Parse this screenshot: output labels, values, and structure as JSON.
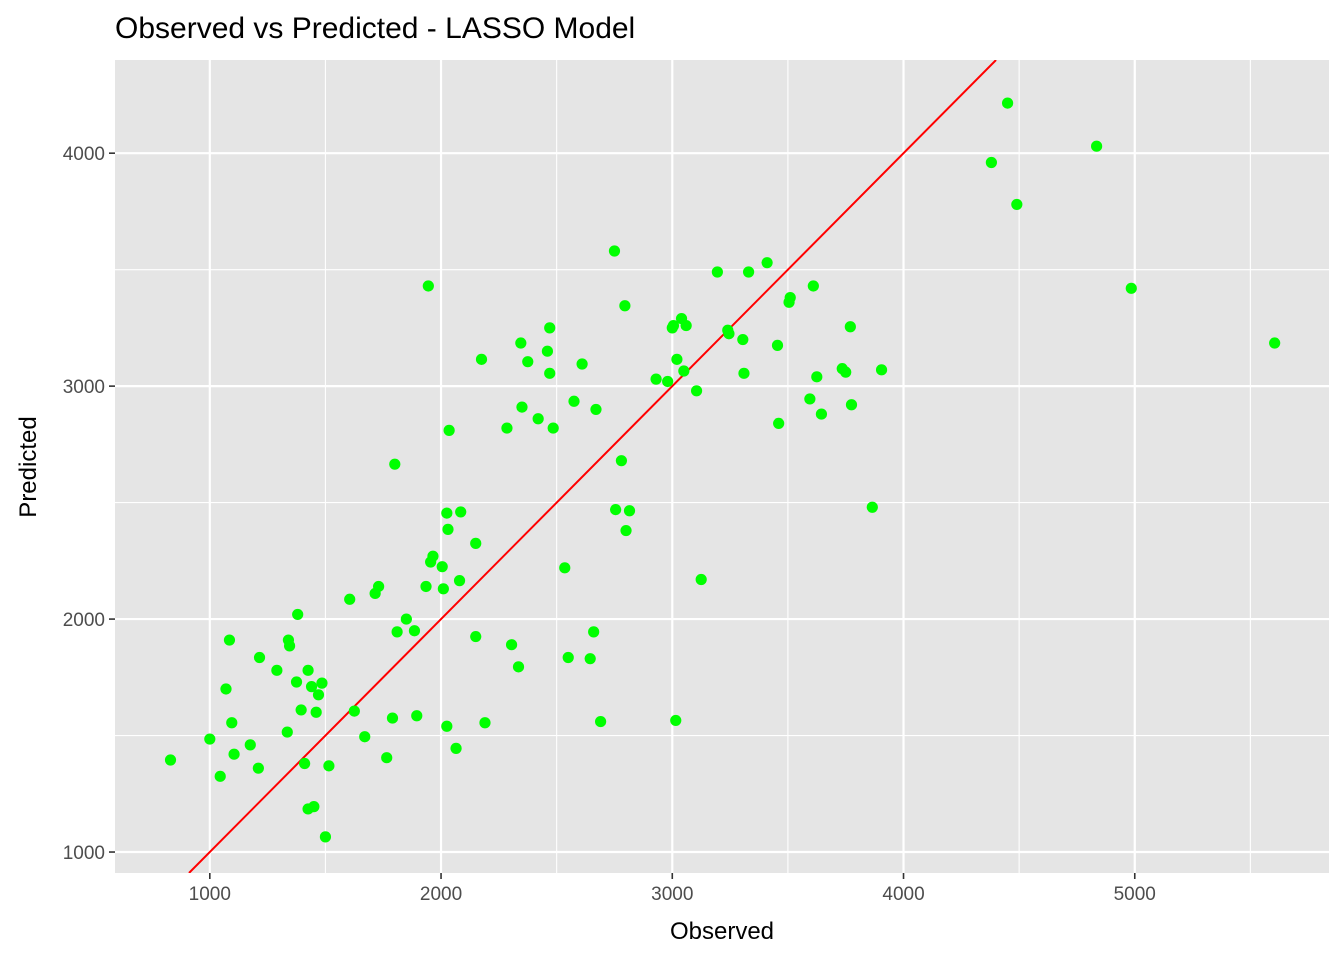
{
  "chart_data": {
    "type": "scatter",
    "title": "Observed vs Predicted - LASSO Model",
    "xlabel": "Observed",
    "ylabel": "Predicted",
    "xlim": [
      590,
      5840
    ],
    "ylim": [
      910,
      4400
    ],
    "x_ticks": [
      1000,
      2000,
      3000,
      4000,
      5000
    ],
    "y_ticks": [
      1000,
      2000,
      3000,
      4000
    ],
    "grid": true,
    "reference_line": {
      "type": "y=x",
      "color": "#ff0000"
    },
    "point_color": "#00ff00",
    "panel_background": "#e5e5e5",
    "points": [
      {
        "x": 830,
        "y": 1395
      },
      {
        "x": 1000,
        "y": 1485
      },
      {
        "x": 1045,
        "y": 1325
      },
      {
        "x": 1070,
        "y": 1700
      },
      {
        "x": 1085,
        "y": 1910
      },
      {
        "x": 1095,
        "y": 1555
      },
      {
        "x": 1105,
        "y": 1420
      },
      {
        "x": 1175,
        "y": 1460
      },
      {
        "x": 1210,
        "y": 1360
      },
      {
        "x": 1215,
        "y": 1835
      },
      {
        "x": 1290,
        "y": 1780
      },
      {
        "x": 1335,
        "y": 1515
      },
      {
        "x": 1340,
        "y": 1910
      },
      {
        "x": 1345,
        "y": 1885
      },
      {
        "x": 1375,
        "y": 1730
      },
      {
        "x": 1380,
        "y": 2020
      },
      {
        "x": 1395,
        "y": 1610
      },
      {
        "x": 1410,
        "y": 1380
      },
      {
        "x": 1425,
        "y": 1780
      },
      {
        "x": 1425,
        "y": 1185
      },
      {
        "x": 1440,
        "y": 1710
      },
      {
        "x": 1450,
        "y": 1195
      },
      {
        "x": 1460,
        "y": 1600
      },
      {
        "x": 1470,
        "y": 1675
      },
      {
        "x": 1485,
        "y": 1725
      },
      {
        "x": 1500,
        "y": 1065
      },
      {
        "x": 1515,
        "y": 1370
      },
      {
        "x": 1605,
        "y": 2085
      },
      {
        "x": 1625,
        "y": 1605
      },
      {
        "x": 1670,
        "y": 1495
      },
      {
        "x": 1715,
        "y": 2110
      },
      {
        "x": 1730,
        "y": 2140
      },
      {
        "x": 1765,
        "y": 1405
      },
      {
        "x": 1790,
        "y": 1575
      },
      {
        "x": 1800,
        "y": 2665
      },
      {
        "x": 1810,
        "y": 1945
      },
      {
        "x": 1850,
        "y": 2000
      },
      {
        "x": 1885,
        "y": 1950
      },
      {
        "x": 1895,
        "y": 1585
      },
      {
        "x": 1935,
        "y": 2140
      },
      {
        "x": 1945,
        "y": 3430
      },
      {
        "x": 1955,
        "y": 2245
      },
      {
        "x": 1965,
        "y": 2270
      },
      {
        "x": 2005,
        "y": 2225
      },
      {
        "x": 2010,
        "y": 2130
      },
      {
        "x": 2025,
        "y": 2455
      },
      {
        "x": 2025,
        "y": 1540
      },
      {
        "x": 2030,
        "y": 2385
      },
      {
        "x": 2035,
        "y": 2810
      },
      {
        "x": 2065,
        "y": 1445
      },
      {
        "x": 2080,
        "y": 2165
      },
      {
        "x": 2085,
        "y": 2460
      },
      {
        "x": 2150,
        "y": 2325
      },
      {
        "x": 2150,
        "y": 1925
      },
      {
        "x": 2175,
        "y": 3115
      },
      {
        "x": 2190,
        "y": 1555
      },
      {
        "x": 2285,
        "y": 2820
      },
      {
        "x": 2305,
        "y": 1890
      },
      {
        "x": 2335,
        "y": 1795
      },
      {
        "x": 2345,
        "y": 3185
      },
      {
        "x": 2350,
        "y": 2910
      },
      {
        "x": 2375,
        "y": 3105
      },
      {
        "x": 2420,
        "y": 2860
      },
      {
        "x": 2460,
        "y": 3150
      },
      {
        "x": 2470,
        "y": 3250
      },
      {
        "x": 2470,
        "y": 3055
      },
      {
        "x": 2485,
        "y": 2820
      },
      {
        "x": 2535,
        "y": 2220
      },
      {
        "x": 2550,
        "y": 1835
      },
      {
        "x": 2575,
        "y": 2935
      },
      {
        "x": 2610,
        "y": 3095
      },
      {
        "x": 2645,
        "y": 1830
      },
      {
        "x": 2660,
        "y": 1945
      },
      {
        "x": 2670,
        "y": 2900
      },
      {
        "x": 2690,
        "y": 1560
      },
      {
        "x": 2750,
        "y": 3580
      },
      {
        "x": 2755,
        "y": 2470
      },
      {
        "x": 2780,
        "y": 2680
      },
      {
        "x": 2795,
        "y": 3345
      },
      {
        "x": 2800,
        "y": 2380
      },
      {
        "x": 2815,
        "y": 2465
      },
      {
        "x": 2930,
        "y": 3030
      },
      {
        "x": 2980,
        "y": 3020
      },
      {
        "x": 3000,
        "y": 3250
      },
      {
        "x": 3005,
        "y": 3260
      },
      {
        "x": 3015,
        "y": 1565
      },
      {
        "x": 3020,
        "y": 3115
      },
      {
        "x": 3040,
        "y": 3290
      },
      {
        "x": 3050,
        "y": 3065
      },
      {
        "x": 3060,
        "y": 3260
      },
      {
        "x": 3105,
        "y": 2980
      },
      {
        "x": 3125,
        "y": 2170
      },
      {
        "x": 3195,
        "y": 3490
      },
      {
        "x": 3240,
        "y": 3240
      },
      {
        "x": 3245,
        "y": 3225
      },
      {
        "x": 3305,
        "y": 3200
      },
      {
        "x": 3310,
        "y": 3055
      },
      {
        "x": 3330,
        "y": 3490
      },
      {
        "x": 3410,
        "y": 3530
      },
      {
        "x": 3455,
        "y": 3175
      },
      {
        "x": 3460,
        "y": 2840
      },
      {
        "x": 3505,
        "y": 3360
      },
      {
        "x": 3510,
        "y": 3380
      },
      {
        "x": 3595,
        "y": 2945
      },
      {
        "x": 3610,
        "y": 3430
      },
      {
        "x": 3625,
        "y": 3040
      },
      {
        "x": 3645,
        "y": 2880
      },
      {
        "x": 3735,
        "y": 3075
      },
      {
        "x": 3750,
        "y": 3060
      },
      {
        "x": 3770,
        "y": 3255
      },
      {
        "x": 3775,
        "y": 2920
      },
      {
        "x": 3865,
        "y": 2480
      },
      {
        "x": 3905,
        "y": 3070
      },
      {
        "x": 4380,
        "y": 3960
      },
      {
        "x": 4450,
        "y": 4215
      },
      {
        "x": 4490,
        "y": 3780
      },
      {
        "x": 4835,
        "y": 4030
      },
      {
        "x": 4985,
        "y": 3420
      },
      {
        "x": 5605,
        "y": 3185
      }
    ]
  }
}
